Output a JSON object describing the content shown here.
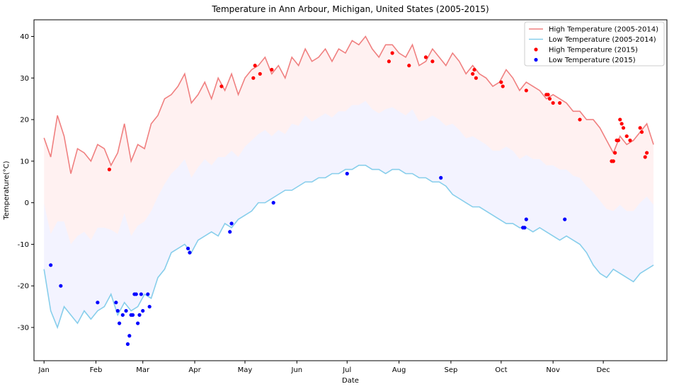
{
  "chart_data": {
    "type": "line",
    "title": "Temperature in Ann Arbour, Michigan, United States (2005-2015)",
    "xlabel": "Date",
    "ylabel": "Temperature(°C)",
    "ylim": [
      -38,
      44
    ],
    "xlim": [
      -6,
      372
    ],
    "yticks": [
      -30,
      -20,
      -10,
      0,
      10,
      20,
      30,
      40
    ],
    "xticks": [
      {
        "label": "Jan",
        "day": 0
      },
      {
        "label": "Feb",
        "day": 31
      },
      {
        "label": "Mar",
        "day": 59
      },
      {
        "label": "Apr",
        "day": 90
      },
      {
        "label": "May",
        "day": 120
      },
      {
        "label": "Jun",
        "day": 151
      },
      {
        "label": "Jul",
        "day": 181
      },
      {
        "label": "Aug",
        "day": 212
      },
      {
        "label": "Sep",
        "day": 243
      },
      {
        "label": "Oct",
        "day": 273
      },
      {
        "label": "Nov",
        "day": 304
      },
      {
        "label": "Dec",
        "day": 334
      }
    ],
    "grid": false,
    "legend": {
      "placement": "top-right",
      "entries": [
        "High Temperature (2005-2014)",
        "Low Temperature (2005-2014)",
        "High Temperature (2015)",
        "Low Temperature (2015)"
      ]
    },
    "colors": {
      "high_line": "#f08080",
      "low_line": "#87ceeb",
      "high_fill": "#ffb0b0",
      "low_fill": "#c8c8ff",
      "high_points": "#ff0000",
      "low_points": "#0000ff"
    },
    "series": [
      {
        "name": "High Temperature (2005-2014)",
        "kind": "line",
        "x": [
          0,
          4,
          8,
          12,
          16,
          20,
          24,
          28,
          32,
          36,
          40,
          44,
          48,
          52,
          56,
          60,
          64,
          68,
          72,
          76,
          80,
          84,
          88,
          92,
          96,
          100,
          104,
          108,
          112,
          116,
          120,
          124,
          128,
          132,
          136,
          140,
          144,
          148,
          152,
          156,
          160,
          164,
          168,
          172,
          176,
          180,
          184,
          188,
          192,
          196,
          200,
          204,
          208,
          212,
          216,
          220,
          224,
          228,
          232,
          236,
          240,
          244,
          248,
          252,
          256,
          260,
          264,
          268,
          272,
          276,
          280,
          284,
          288,
          292,
          296,
          300,
          304,
          308,
          312,
          316,
          320,
          324,
          328,
          332,
          336,
          340,
          344,
          348,
          352,
          356,
          360,
          364
        ],
        "y": [
          15.6,
          11,
          21,
          16,
          7,
          13,
          12,
          10,
          14,
          13,
          9,
          12,
          19,
          10,
          14,
          13,
          19,
          21,
          25,
          26,
          28,
          31,
          24,
          26,
          29,
          25,
          30,
          27,
          31,
          26,
          30,
          32,
          33,
          35,
          31,
          33,
          30,
          35,
          33,
          37,
          34,
          35,
          37,
          34,
          37,
          36,
          39,
          38,
          40,
          37,
          35,
          38,
          38,
          36,
          35,
          38,
          33,
          34,
          37,
          35,
          33,
          36,
          34,
          31,
          33,
          31,
          30,
          28,
          29,
          32,
          30,
          27,
          29,
          28,
          27,
          25,
          26,
          25,
          24,
          22,
          22,
          20,
          20,
          18,
          15,
          12,
          16,
          14,
          15,
          17,
          19,
          14
        ]
      },
      {
        "name": "Low Temperature (2005-2014)",
        "kind": "line",
        "x": [
          0,
          4,
          8,
          12,
          16,
          20,
          24,
          28,
          32,
          36,
          40,
          44,
          48,
          52,
          56,
          60,
          64,
          68,
          72,
          76,
          80,
          84,
          88,
          92,
          96,
          100,
          104,
          108,
          112,
          116,
          120,
          124,
          128,
          132,
          136,
          140,
          144,
          148,
          152,
          156,
          160,
          164,
          168,
          172,
          176,
          180,
          184,
          188,
          192,
          196,
          200,
          204,
          208,
          212,
          216,
          220,
          224,
          228,
          232,
          236,
          240,
          244,
          248,
          252,
          256,
          260,
          264,
          268,
          272,
          276,
          280,
          284,
          288,
          292,
          296,
          300,
          304,
          308,
          312,
          316,
          320,
          324,
          328,
          332,
          336,
          340,
          344,
          348,
          352,
          356,
          360,
          364
        ],
        "y": [
          -16,
          -26,
          -30,
          -25,
          -27,
          -29,
          -26,
          -28,
          -26,
          -25,
          -22,
          -27,
          -24,
          -26,
          -25,
          -22,
          -23,
          -18,
          -16,
          -12,
          -11,
          -10,
          -12,
          -9,
          -8,
          -7,
          -8,
          -5,
          -6,
          -4,
          -3,
          -2,
          0,
          0,
          1,
          2,
          3,
          3,
          4,
          5,
          5,
          6,
          6,
          7,
          7,
          8,
          8,
          9,
          9,
          8,
          8,
          7,
          8,
          8,
          7,
          7,
          6,
          6,
          5,
          5,
          4,
          2,
          1,
          0,
          -1,
          -1,
          -2,
          -3,
          -4,
          -5,
          -5,
          -6,
          -6,
          -7,
          -6,
          -7,
          -8,
          -9,
          -8,
          -9,
          -10,
          -12,
          -15,
          -17,
          -18,
          -16,
          -17,
          -18,
          -19,
          -17,
          -16,
          -15
        ]
      },
      {
        "name": "High Temperature (2015)",
        "kind": "scatter",
        "x": [
          39,
          106,
          125,
          126,
          129,
          136,
          206,
          208,
          218,
          228,
          232,
          256,
          257,
          258,
          273,
          274,
          288,
          300,
          301,
          302,
          304,
          308,
          320,
          339,
          340,
          341,
          342,
          343,
          344,
          345,
          346,
          348,
          350,
          356,
          357,
          359,
          360
        ],
        "y": [
          8,
          28,
          30,
          33,
          31,
          32,
          34,
          36,
          33,
          35,
          34,
          31,
          32,
          30,
          29,
          28,
          27,
          26,
          26,
          25,
          24,
          24,
          20,
          10,
          10,
          12,
          15,
          15,
          20,
          19,
          18,
          16,
          15,
          18,
          17,
          11,
          12
        ]
      },
      {
        "name": "Low Temperature (2015)",
        "kind": "scatter",
        "x": [
          4,
          10,
          32,
          43,
          44,
          45,
          47,
          49,
          50,
          51,
          52,
          53,
          54,
          55,
          56,
          57,
          58,
          59,
          62,
          63,
          86,
          87,
          111,
          112,
          137,
          181,
          237,
          286,
          287,
          288,
          311
        ],
        "y": [
          -15,
          -20,
          -24,
          -24,
          -26,
          -29,
          -27,
          -26,
          -34,
          -32,
          -27,
          -27,
          -22,
          -22,
          -29,
          -27,
          -22,
          -26,
          -22,
          -25,
          -11,
          -12,
          -7,
          -5,
          0,
          7,
          6,
          -6,
          -6,
          -4,
          -4
        ]
      }
    ]
  }
}
